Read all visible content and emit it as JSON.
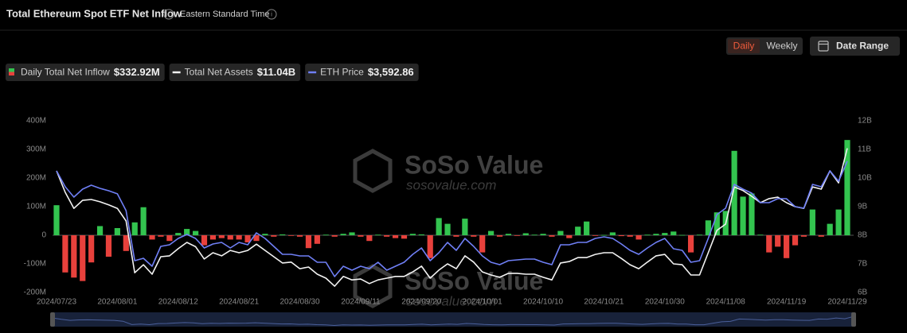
{
  "header": {
    "title": "Total Ethereum Spot ETF Net Inflow",
    "timezone": "Eastern Standard Time"
  },
  "controls": {
    "intervals": [
      "Daily",
      "Weekly"
    ],
    "date_range": "Date Range"
  },
  "watermark": {
    "brand": "SoSo Value",
    "site": "sosovalue.com"
  },
  "chart_data": {
    "type": "bar",
    "categories": [
      "2024/07/23",
      null,
      null,
      null,
      null,
      null,
      null,
      "2024/08/01",
      null,
      null,
      null,
      null,
      null,
      null,
      "2024/08/12",
      null,
      null,
      null,
      null,
      null,
      null,
      "2024/08/21",
      null,
      null,
      null,
      null,
      null,
      null,
      "2024/08/30",
      null,
      null,
      null,
      null,
      null,
      null,
      "2024/09/11",
      null,
      null,
      null,
      null,
      null,
      null,
      "2024/09/20",
      null,
      null,
      null,
      null,
      null,
      null,
      "2024/10/01",
      null,
      null,
      null,
      null,
      null,
      null,
      "2024/10/10",
      null,
      null,
      null,
      null,
      null,
      null,
      "2024/10/21",
      null,
      null,
      null,
      null,
      null,
      null,
      "2024/10/30",
      null,
      null,
      null,
      null,
      null,
      null,
      "2024/11/08",
      null,
      null,
      null,
      null,
      null,
      null,
      "2024/11/19",
      null,
      null,
      null,
      null,
      null,
      null,
      "2024/11/29"
    ],
    "series": [
      {
        "name": "Daily Total Net Inflow",
        "legend_value": "$332.92M",
        "type": "bar",
        "color": "#33c44f",
        "negative_color": "#e8413c",
        "values": [
          105,
          -130,
          -148,
          -160,
          -95,
          32,
          -75,
          25,
          -55,
          45,
          98,
          -15,
          -5,
          -20,
          8,
          22,
          15,
          -35,
          -15,
          -10,
          -15,
          -15,
          -25,
          -20,
          5,
          -5,
          3,
          -2,
          -5,
          -45,
          -30,
          2,
          -5,
          5,
          10,
          -5,
          -20,
          2,
          -5,
          -10,
          -12,
          5,
          3,
          -80,
          60,
          40,
          -5,
          58,
          -5,
          -60,
          15,
          -5,
          5,
          -2,
          7,
          2,
          5,
          -5,
          15,
          -10,
          30,
          48,
          -2,
          1,
          10,
          -3,
          -5,
          -15,
          2,
          5,
          8,
          13,
          1,
          -60,
          2,
          52,
          80,
          85,
          295,
          135,
          146,
          2,
          -60,
          -40,
          -80,
          -35,
          -5,
          90,
          -5,
          40,
          90,
          332.92
        ]
      },
      {
        "name": "Total Net Assets",
        "legend_value": "$11.04B",
        "type": "line",
        "axis": "y2",
        "color": "#f2f2f2",
        "values": [
          10.25,
          9.5,
          8.94,
          9.22,
          9.25,
          9.17,
          9.06,
          8.94,
          8.5,
          6.69,
          6.97,
          6.64,
          7.25,
          7.28,
          7.53,
          7.75,
          7.6,
          7.17,
          7.39,
          7.28,
          7.47,
          7.39,
          7.47,
          7.69,
          7.47,
          7.25,
          7.03,
          7.06,
          6.83,
          6.89,
          6.64,
          6.5,
          6.22,
          6.56,
          6.44,
          6.47,
          6.31,
          6.44,
          6.5,
          6.56,
          6.56,
          6.72,
          6.92,
          6.5,
          6.78,
          7.0,
          6.83,
          7.28,
          7.06,
          6.72,
          6.61,
          6.53,
          6.67,
          6.67,
          6.64,
          6.64,
          6.53,
          6.44,
          7.03,
          7.08,
          7.22,
          7.22,
          7.33,
          7.39,
          7.39,
          7.19,
          6.97,
          6.83,
          7.06,
          7.28,
          7.33,
          7.0,
          6.97,
          6.61,
          6.61,
          7.39,
          8.17,
          8.39,
          9.69,
          9.56,
          9.36,
          9.14,
          9.28,
          9.33,
          9.14,
          9.0,
          8.94,
          9.69,
          9.61,
          10.25,
          9.83,
          11.04
        ]
      },
      {
        "name": "ETH Price",
        "legend_value": "$3,592.86",
        "type": "line",
        "axis": "y3",
        "color": "#6f7ff5",
        "values": [
          3478,
          3290,
          3168,
          3262,
          3309,
          3271,
          3243,
          3206,
          3008,
          2416,
          2444,
          2350,
          2585,
          2604,
          2679,
          2726,
          2679,
          2566,
          2613,
          2632,
          2566,
          2632,
          2604,
          2745,
          2679,
          2585,
          2491,
          2491,
          2472,
          2472,
          2397,
          2397,
          2228,
          2350,
          2303,
          2350,
          2322,
          2397,
          2303,
          2350,
          2397,
          2491,
          2566,
          2416,
          2510,
          2632,
          2538,
          2679,
          2585,
          2472,
          2397,
          2369,
          2416,
          2425,
          2435,
          2435,
          2397,
          2369,
          2604,
          2604,
          2632,
          2632,
          2679,
          2698,
          2679,
          2613,
          2538,
          2491,
          2566,
          2632,
          2679,
          2557,
          2538,
          2397,
          2416,
          2679,
          2961,
          3036,
          3318,
          3262,
          3215,
          3102,
          3102,
          3149,
          3149,
          3055,
          3036,
          3318,
          3290,
          3478,
          3356,
          3592.86
        ]
      }
    ],
    "ylim": [
      -200,
      400
    ],
    "yticks": [
      {
        "value": -200,
        "label": "-200M"
      },
      {
        "value": -100,
        "label": "-100M"
      },
      0,
      {
        "value": 100,
        "label": "100M"
      },
      {
        "value": 200,
        "label": "200M"
      },
      {
        "value": 300,
        "label": "300M"
      },
      {
        "value": 400,
        "label": "400M"
      }
    ],
    "y2lim": [
      6,
      12
    ],
    "y2ticks": [
      {
        "value": 6,
        "label": "6B"
      },
      {
        "value": 7,
        "label": "7B"
      },
      {
        "value": 8,
        "label": "8B"
      },
      {
        "value": 9,
        "label": "9B"
      },
      {
        "value": 10,
        "label": "10B"
      },
      {
        "value": 11,
        "label": "11B"
      },
      {
        "value": 12,
        "label": "12B"
      }
    ],
    "y3lim": [
      2040,
      4070
    ]
  }
}
